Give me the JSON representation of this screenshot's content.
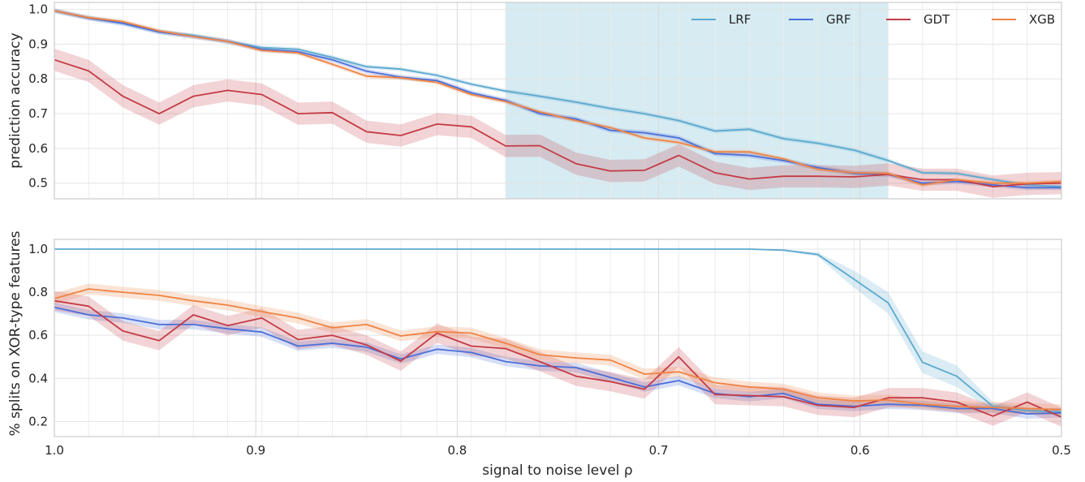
{
  "chart_data": [
    {
      "type": "line",
      "xlabel": "",
      "ylabel": "prediction accuracy",
      "xlim": [
        1.0,
        0.5
      ],
      "ylim": [
        0.455,
        1.02
      ],
      "x_reversed": true,
      "xticks": [
        "1.0",
        "0.9",
        "0.8",
        "0.7",
        "0.6",
        "0.5"
      ],
      "yticks": [
        "0.5",
        "0.6",
        "0.7",
        "0.8",
        "0.9",
        "1.0"
      ],
      "show_xticklabels": false,
      "grid": true,
      "legend_position": "top-right",
      "highlight_span": {
        "x_from": 0.776,
        "x_to": 0.586,
        "color": "#add8e6"
      },
      "x": [
        1.0,
        0.983,
        0.966,
        0.948,
        0.931,
        0.914,
        0.897,
        0.879,
        0.862,
        0.845,
        0.828,
        0.81,
        0.793,
        0.776,
        0.759,
        0.741,
        0.724,
        0.707,
        0.69,
        0.672,
        0.655,
        0.638,
        0.621,
        0.603,
        0.586,
        0.569,
        0.552,
        0.534,
        0.517,
        0.5
      ],
      "series": [
        {
          "name": "LRF",
          "color": "#5ba9cf",
          "band": 0.006,
          "values": [
            0.996,
            0.975,
            0.96,
            0.935,
            0.925,
            0.908,
            0.89,
            0.885,
            0.862,
            0.835,
            0.828,
            0.81,
            0.785,
            0.765,
            0.75,
            0.733,
            0.715,
            0.7,
            0.68,
            0.65,
            0.655,
            0.628,
            0.615,
            0.595,
            0.565,
            0.53,
            0.528,
            0.51,
            0.495,
            0.49
          ]
        },
        {
          "name": "GRF",
          "color": "#4a6fd9",
          "band": 0.007,
          "values": [
            0.996,
            0.975,
            0.96,
            0.935,
            0.922,
            0.908,
            0.885,
            0.878,
            0.855,
            0.822,
            0.805,
            0.795,
            0.76,
            0.738,
            0.7,
            0.685,
            0.652,
            0.645,
            0.63,
            0.585,
            0.58,
            0.565,
            0.545,
            0.528,
            0.525,
            0.5,
            0.505,
            0.495,
            0.487,
            0.487
          ]
        },
        {
          "name": "GDT",
          "color": "#c43b45",
          "band": 0.032,
          "values": [
            0.855,
            0.823,
            0.75,
            0.7,
            0.75,
            0.767,
            0.755,
            0.7,
            0.703,
            0.648,
            0.637,
            0.67,
            0.662,
            0.607,
            0.608,
            0.556,
            0.535,
            0.537,
            0.58,
            0.53,
            0.512,
            0.52,
            0.52,
            0.518,
            0.525,
            0.51,
            0.51,
            0.49,
            0.498,
            0.5
          ]
        },
        {
          "name": "XGB",
          "color": "#ef8343",
          "band": 0.006,
          "values": [
            0.996,
            0.976,
            0.965,
            0.938,
            0.922,
            0.908,
            0.882,
            0.875,
            0.842,
            0.808,
            0.803,
            0.79,
            0.755,
            0.735,
            0.705,
            0.68,
            0.66,
            0.63,
            0.617,
            0.59,
            0.59,
            0.57,
            0.54,
            0.53,
            0.528,
            0.495,
            0.51,
            0.5,
            0.5,
            0.505
          ]
        }
      ]
    },
    {
      "type": "line",
      "xlabel": "signal to noise level ρ",
      "ylabel": "% splits on XOR-type features",
      "xlim": [
        1.0,
        0.5
      ],
      "ylim": [
        0.13,
        1.045
      ],
      "x_reversed": true,
      "xticks": [
        "1.0",
        "0.9",
        "0.8",
        "0.7",
        "0.6",
        "0.5"
      ],
      "yticks": [
        "0.2",
        "0.4",
        "0.6",
        "0.8",
        "1.0"
      ],
      "show_xticklabels": true,
      "grid": true,
      "x": [
        1.0,
        0.983,
        0.966,
        0.948,
        0.931,
        0.914,
        0.897,
        0.879,
        0.862,
        0.845,
        0.828,
        0.81,
        0.793,
        0.776,
        0.759,
        0.741,
        0.724,
        0.707,
        0.69,
        0.672,
        0.655,
        0.638,
        0.621,
        0.603,
        0.586,
        0.569,
        0.552,
        0.534,
        0.517,
        0.5
      ],
      "series": [
        {
          "name": "LRF",
          "color": "#5ba9cf",
          "bands": [
            0,
            0,
            0,
            0,
            0,
            0,
            0,
            0,
            0,
            0,
            0,
            0,
            0,
            0,
            0,
            0,
            0,
            0,
            0,
            0,
            0,
            0.003,
            0.01,
            0.04,
            0.05,
            0.05,
            0.05,
            0.02,
            0.015,
            0.015
          ],
          "values": [
            1.0,
            1.0,
            1.0,
            1.0,
            1.0,
            1.0,
            1.0,
            1.0,
            1.0,
            1.0,
            1.0,
            1.0,
            1.0,
            1.0,
            1.0,
            1.0,
            1.0,
            1.0,
            1.0,
            1.0,
            1.0,
            0.995,
            0.975,
            0.86,
            0.75,
            0.475,
            0.41,
            0.27,
            0.25,
            0.245
          ]
        },
        {
          "name": "GRF",
          "color": "#4a6fd9",
          "band": 0.022,
          "values": [
            0.73,
            0.695,
            0.68,
            0.65,
            0.65,
            0.63,
            0.615,
            0.55,
            0.563,
            0.545,
            0.49,
            0.535,
            0.52,
            0.478,
            0.458,
            0.45,
            0.405,
            0.36,
            0.39,
            0.33,
            0.315,
            0.33,
            0.28,
            0.27,
            0.28,
            0.275,
            0.26,
            0.26,
            0.235,
            0.24
          ]
        },
        {
          "name": "GDT",
          "color": "#c43b45",
          "band": 0.045,
          "values": [
            0.76,
            0.735,
            0.62,
            0.575,
            0.695,
            0.645,
            0.68,
            0.58,
            0.6,
            0.555,
            0.48,
            0.61,
            0.55,
            0.538,
            0.478,
            0.41,
            0.385,
            0.35,
            0.5,
            0.325,
            0.32,
            0.315,
            0.275,
            0.265,
            0.31,
            0.31,
            0.29,
            0.225,
            0.29,
            0.22
          ]
        },
        {
          "name": "XGB",
          "color": "#ef8343",
          "band": 0.025,
          "values": [
            0.77,
            0.815,
            0.8,
            0.785,
            0.76,
            0.74,
            0.71,
            0.68,
            0.635,
            0.65,
            0.597,
            0.617,
            0.61,
            0.563,
            0.51,
            0.495,
            0.485,
            0.42,
            0.43,
            0.38,
            0.36,
            0.35,
            0.31,
            0.295,
            0.3,
            0.28,
            0.27,
            0.265,
            0.26,
            0.255
          ]
        }
      ]
    }
  ]
}
